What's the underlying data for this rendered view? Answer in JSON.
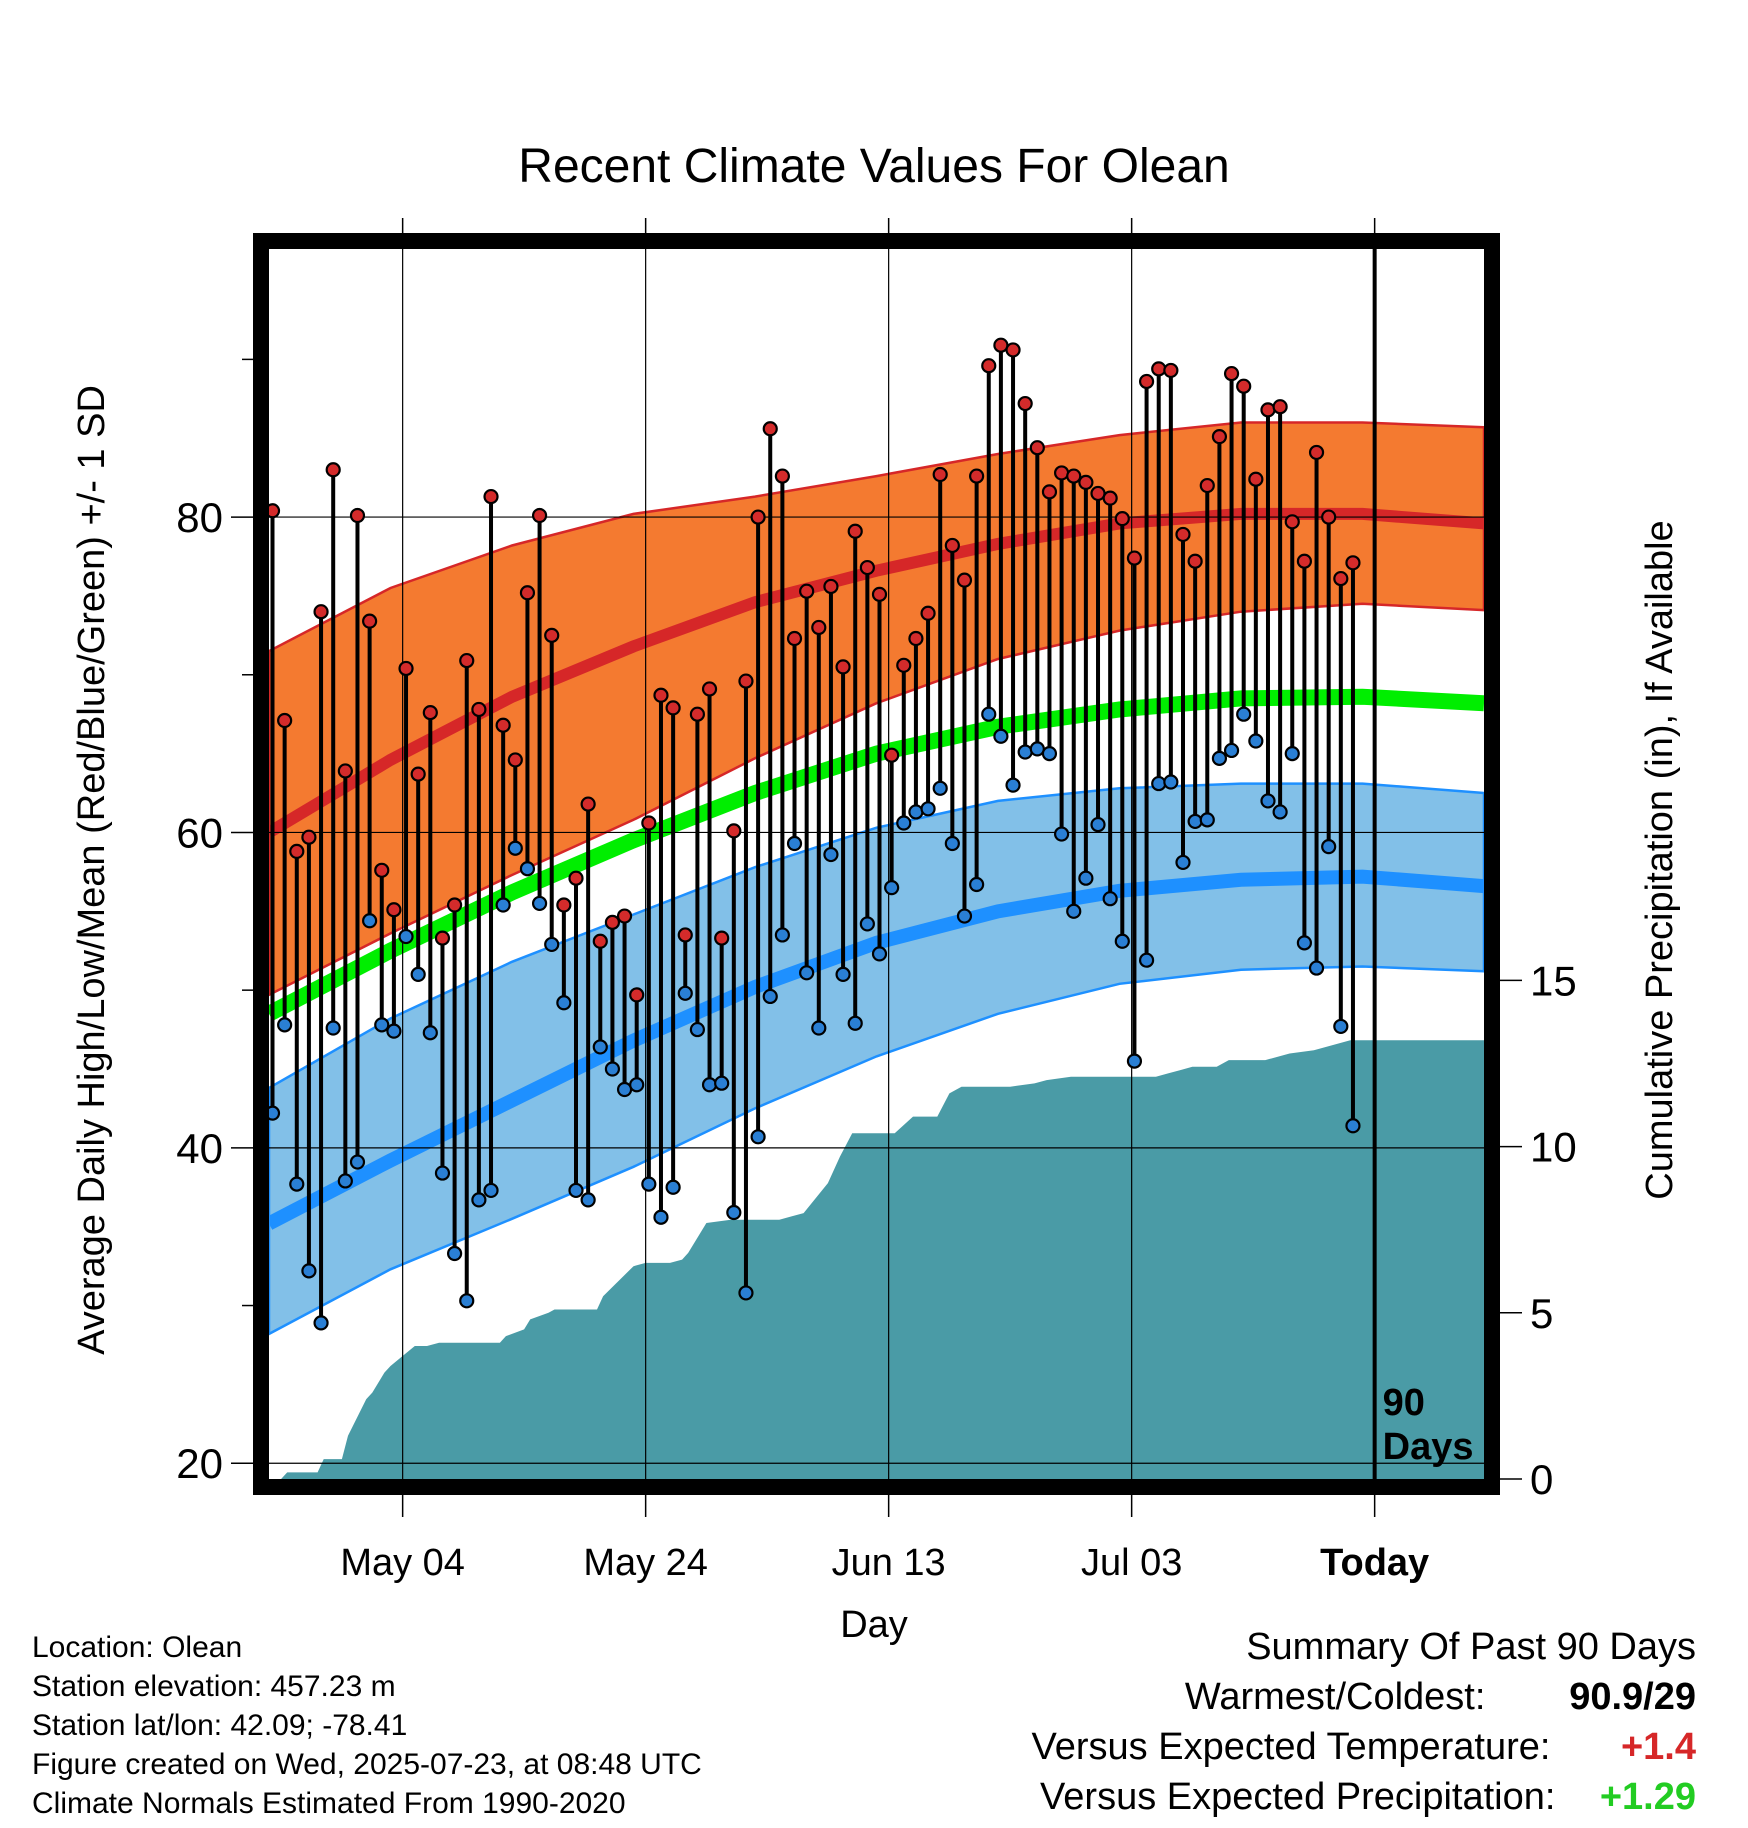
{
  "chart_data": {
    "type": "line",
    "title": "Recent Climate Values For Olean",
    "xlabel": "Day",
    "ylabel": "Average Daily High/Low/Mean (Red/Blue/Green) +/- 1 SD",
    "y2label": "Cumulative Precipitation (in), If Available",
    "x_tick_labels": [
      "May 04",
      "May 24",
      "Jun 13",
      "Jul 03",
      "Today"
    ],
    "x_tick_days": [
      11,
      31,
      51,
      71,
      91
    ],
    "x_range_days": [
      0,
      100
    ],
    "y_ticks": [
      20,
      40,
      60,
      80
    ],
    "ylim": [
      19,
      97
    ],
    "y2_ticks": [
      0,
      5,
      10,
      15
    ],
    "y2lim": [
      0,
      37
    ],
    "today_marker_label": "90 Days",
    "colors": {
      "high_band": "#f47a30",
      "high_line": "#d62728",
      "low_band": "#82c0e8",
      "low_line": "#1e90ff",
      "mean_line": "#00ee00",
      "precip": "#4a9ba6",
      "high_point": "#d42b2b",
      "low_point": "#2a7fd4"
    },
    "normals": {
      "days": [
        0,
        10,
        20,
        30,
        40,
        50,
        60,
        70,
        80,
        90,
        100
      ],
      "high_mean": [
        60,
        64.6,
        68.6,
        71.8,
        74.6,
        76.6,
        78.3,
        79.6,
        80.2,
        80.2,
        79.6
      ],
      "high_upper": [
        71.5,
        75.5,
        78.2,
        80.2,
        81.3,
        82.6,
        84,
        85.2,
        86,
        86,
        85.7
      ],
      "high_lower": [
        49.7,
        53.6,
        57.3,
        60.8,
        64.7,
        68.2,
        71,
        72.8,
        74,
        74.5,
        74.1
      ],
      "mean_mean": [
        48.5,
        52.5,
        56.2,
        59.5,
        62.5,
        65,
        66.7,
        67.8,
        68.5,
        68.6,
        68.2
      ],
      "low_mean": [
        35.2,
        39.2,
        43,
        46.8,
        50.2,
        53,
        55,
        56.3,
        57,
        57.2,
        56.6
      ],
      "low_upper": [
        43.8,
        48.2,
        51.8,
        54.8,
        57.8,
        60.3,
        62,
        62.8,
        63.1,
        63.1,
        62.5
      ],
      "low_lower": [
        28.2,
        32.3,
        35.5,
        38.8,
        42.5,
        45.8,
        48.5,
        50.4,
        51.3,
        51.5,
        51.2
      ]
    },
    "daily_highs": [
      80.4,
      67.1,
      58.8,
      59.7,
      74.0,
      83.0,
      63.9,
      80.1,
      73.4,
      57.6,
      55.1,
      70.4,
      63.7,
      67.6,
      53.3,
      55.4,
      70.9,
      67.8,
      81.3,
      66.8,
      64.6,
      75.2,
      80.1,
      72.5,
      55.4,
      57.1,
      61.8,
      53.1,
      54.3,
      54.7,
      49.7,
      60.6,
      68.7,
      67.9,
      53.5,
      67.5,
      69.1,
      53.3,
      60.1,
      69.6,
      80.0,
      85.6,
      82.6,
      72.3,
      75.3,
      73.0,
      75.6,
      70.5,
      79.1,
      76.8,
      75.1,
      64.9,
      70.6,
      72.3,
      73.9,
      82.7,
      78.2,
      76.0,
      82.6,
      89.6,
      90.9,
      90.6,
      87.2,
      84.4,
      81.6,
      82.8,
      82.6,
      82.2,
      81.5,
      81.2,
      79.9,
      77.4,
      88.6,
      89.4,
      89.3,
      78.9,
      77.2,
      82.0,
      85.1,
      89.1,
      88.3,
      82.4,
      86.8,
      87.0,
      79.7,
      77.2,
      84.1,
      80.0,
      76.1,
      77.1
    ],
    "daily_lows": [
      42.2,
      47.8,
      37.7,
      32.2,
      28.9,
      47.6,
      37.9,
      39.1,
      54.4,
      47.8,
      47.4,
      53.4,
      51.0,
      47.3,
      38.4,
      33.3,
      30.3,
      36.7,
      37.3,
      55.4,
      59.0,
      57.7,
      55.5,
      52.9,
      49.2,
      37.3,
      36.7,
      46.4,
      45.0,
      43.7,
      44.0,
      37.7,
      35.6,
      37.5,
      49.8,
      47.5,
      44.0,
      44.1,
      35.9,
      30.8,
      40.7,
      49.6,
      53.5,
      59.3,
      51.1,
      47.6,
      58.6,
      51.0,
      47.9,
      54.2,
      52.3,
      56.5,
      60.6,
      61.3,
      61.5,
      62.8,
      59.3,
      54.7,
      56.7,
      67.5,
      66.1,
      63.0,
      65.1,
      65.3,
      65.0,
      59.9,
      55.0,
      57.1,
      60.5,
      55.8,
      53.1,
      45.5,
      51.9,
      63.1,
      63.2,
      58.1,
      60.7,
      60.8,
      64.7,
      65.2,
      67.5,
      65.8,
      62.0,
      61.3,
      65.0,
      53.0,
      51.4,
      59.1,
      47.7,
      41.4
    ],
    "cumulative_precip": {
      "days": [
        0,
        1,
        1.5,
        4,
        4.5,
        6,
        6.5,
        8,
        8.5,
        9.5,
        10,
        11,
        12,
        13,
        14,
        15,
        16,
        17,
        18,
        19,
        19.5,
        21,
        21.5,
        23,
        23.5,
        24,
        25,
        26,
        26.5,
        27,
        27.5,
        30,
        31,
        33,
        34,
        34.5,
        36,
        38,
        40,
        42,
        43,
        44,
        46,
        47,
        48,
        50,
        51,
        51.5,
        53,
        54,
        55,
        56,
        57,
        60,
        61,
        63,
        64,
        66,
        70,
        73,
        74,
        75,
        76,
        78,
        79,
        80,
        81,
        82,
        84,
        86,
        89,
        100
      ],
      "values": [
        0,
        0,
        0.2,
        0.2,
        0.6,
        0.6,
        1.3,
        2.4,
        2.6,
        3.2,
        3.4,
        3.7,
        4.0,
        4.0,
        4.1,
        4.1,
        4.1,
        4.1,
        4.1,
        4.1,
        4.3,
        4.5,
        4.8,
        5.0,
        5.1,
        5.1,
        5.1,
        5.1,
        5.1,
        5.1,
        5.5,
        6.4,
        6.5,
        6.5,
        6.6,
        6.8,
        7.7,
        7.8,
        7.8,
        7.8,
        7.9,
        8.0,
        8.9,
        9.7,
        10.4,
        10.4,
        10.4,
        10.4,
        10.9,
        10.9,
        10.9,
        11.6,
        11.8,
        11.8,
        11.8,
        11.9,
        12.0,
        12.1,
        12.1,
        12.1,
        12.2,
        12.3,
        12.4,
        12.4,
        12.6,
        12.6,
        12.6,
        12.6,
        12.8,
        12.9,
        13.2,
        13.2
      ]
    }
  },
  "info": {
    "location": "Location: Olean",
    "elevation": "Station elevation: 457.23 m",
    "latlon": "Station lat/lon: 42.09; -78.41",
    "created": "Figure created on Wed, 2025-07-23, at 08:48 UTC",
    "normals": "Climate Normals Estimated From 1990-2020"
  },
  "summary": {
    "title": "Summary Of Past 90 Days",
    "row1_label": "Warmest/Coldest:",
    "row1_warm": "90.9",
    "row1_sep": "/",
    "row1_cold": "29",
    "row2_label": "Versus Expected Temperature:",
    "row2_value": "+1.4",
    "row2_color": "#d62728",
    "row3_label": "Versus Expected Precipitation:",
    "row3_value": "+1.29",
    "row3_color": "#22cc22"
  }
}
